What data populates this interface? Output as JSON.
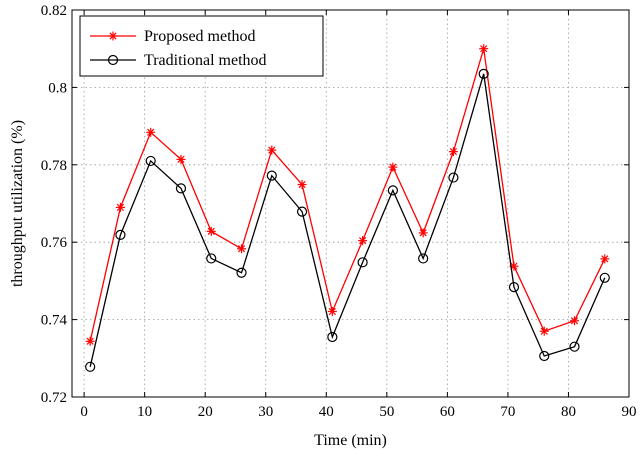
{
  "chart_data": {
    "type": "line",
    "title": "",
    "xlabel": "Time (min)",
    "ylabel": "throughput utilization  (%)",
    "xlim": [
      -2,
      90
    ],
    "ylim": [
      0.72,
      0.82
    ],
    "xticks": [
      0,
      10,
      20,
      30,
      40,
      50,
      60,
      70,
      80,
      90
    ],
    "yticks": [
      0.72,
      0.74,
      0.76,
      0.78,
      0.8,
      0.82
    ],
    "ytick_labels": [
      "0.72",
      "0.74",
      "0.76",
      "0.78",
      "0.8",
      "0.82"
    ],
    "grid": true,
    "legend_position": "top-left",
    "x": [
      1,
      6,
      11,
      16,
      21,
      26,
      31,
      36,
      41,
      46,
      51,
      56,
      61,
      66,
      71,
      76,
      81,
      86
    ],
    "series": [
      {
        "name": "Proposed method",
        "color": "#ff0000",
        "marker": "asterisk",
        "values": [
          0.7344,
          0.769,
          0.7884,
          0.7814,
          0.7628,
          0.7583,
          0.7838,
          0.7749,
          0.7421,
          0.7604,
          0.7794,
          0.7624,
          0.7834,
          0.81,
          0.7538,
          0.737,
          0.7397,
          0.7557
        ]
      },
      {
        "name": "Traditional method",
        "color": "#000000",
        "marker": "circle",
        "values": [
          0.7278,
          0.7619,
          0.781,
          0.7739,
          0.7558,
          0.7521,
          0.7772,
          0.7679,
          0.7355,
          0.7548,
          0.7734,
          0.7558,
          0.7767,
          0.8035,
          0.7484,
          0.7306,
          0.733,
          0.7508
        ]
      }
    ]
  }
}
